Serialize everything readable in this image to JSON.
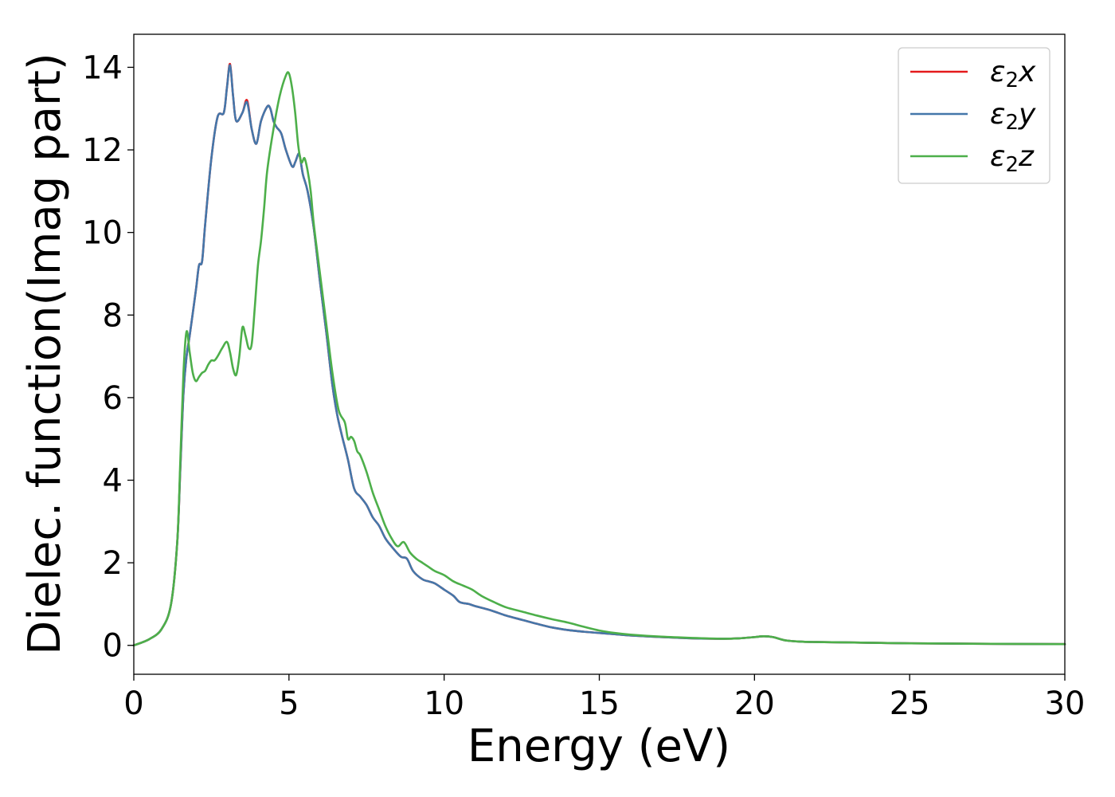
{
  "chart_data": {
    "type": "line",
    "xlabel": "Energy (eV)",
    "ylabel": "Dielec. function(Imag part)",
    "xlim": [
      0,
      30
    ],
    "ylim": [
      -0.7,
      14.8
    ],
    "xticks": [
      0,
      5,
      10,
      15,
      20,
      25,
      30
    ],
    "yticks": [
      0,
      2,
      4,
      6,
      8,
      10,
      12,
      14
    ],
    "grid": false,
    "legend_position": "top-right",
    "series": [
      {
        "name": "ε₂x",
        "legend": {
          "base": "ε",
          "sub": "2",
          "axis": "x"
        },
        "color": "#e41a1c",
        "x": [
          0,
          0.5,
          0.9,
          1.2,
          1.4,
          1.5,
          1.6,
          1.7,
          1.8,
          2.0,
          2.1,
          2.2,
          2.3,
          2.5,
          2.7,
          2.9,
          3.0,
          3.1,
          3.2,
          3.3,
          3.5,
          3.65,
          3.8,
          3.95,
          4.1,
          4.3,
          4.4,
          4.5,
          4.6,
          4.75,
          4.9,
          5.1,
          5.2,
          5.3,
          5.35,
          5.45,
          5.6,
          5.8,
          6.0,
          6.2,
          6.4,
          6.55,
          6.7,
          6.9,
          7.1,
          7.3,
          7.5,
          7.7,
          7.9,
          8.1,
          8.3,
          8.6,
          8.8,
          9.0,
          9.3,
          9.5,
          9.7,
          10.0,
          10.3,
          10.5,
          10.8,
          11.0,
          11.5,
          12.0,
          12.5,
          13.0,
          13.5,
          14.0,
          14.5,
          15.0,
          15.5,
          16.0,
          17.0,
          18.0,
          19.0,
          19.5,
          20.0,
          20.3,
          20.6,
          21.0,
          21.5,
          22.0,
          23.0,
          25.0,
          27.0,
          30.0
        ],
        "values": [
          0.0,
          0.15,
          0.4,
          1.0,
          2.5,
          4.3,
          6.1,
          7.0,
          7.5,
          8.6,
          9.2,
          9.3,
          10.2,
          11.8,
          12.8,
          12.9,
          13.5,
          14.08,
          13.3,
          12.7,
          12.9,
          13.2,
          12.5,
          12.15,
          12.7,
          13.05,
          13.0,
          12.7,
          12.55,
          12.4,
          12.0,
          11.6,
          11.7,
          11.9,
          11.85,
          11.4,
          11.0,
          10.1,
          8.8,
          7.6,
          6.3,
          5.6,
          5.1,
          4.5,
          3.8,
          3.6,
          3.4,
          3.1,
          2.9,
          2.6,
          2.4,
          2.15,
          2.1,
          1.8,
          1.6,
          1.55,
          1.5,
          1.35,
          1.2,
          1.05,
          1.0,
          0.95,
          0.85,
          0.72,
          0.62,
          0.52,
          0.43,
          0.37,
          0.33,
          0.3,
          0.27,
          0.24,
          0.2,
          0.17,
          0.16,
          0.17,
          0.2,
          0.22,
          0.2,
          0.12,
          0.09,
          0.08,
          0.07,
          0.05,
          0.04,
          0.03
        ]
      },
      {
        "name": "ε₂y",
        "legend": {
          "base": "ε",
          "sub": "2",
          "axis": "y"
        },
        "color": "#4477aa",
        "x": [
          0,
          0.5,
          0.9,
          1.2,
          1.4,
          1.5,
          1.6,
          1.7,
          1.8,
          2.0,
          2.1,
          2.2,
          2.3,
          2.5,
          2.7,
          2.9,
          3.0,
          3.1,
          3.2,
          3.3,
          3.5,
          3.65,
          3.8,
          3.95,
          4.1,
          4.3,
          4.4,
          4.5,
          4.6,
          4.75,
          4.9,
          5.1,
          5.2,
          5.3,
          5.35,
          5.45,
          5.6,
          5.8,
          6.0,
          6.2,
          6.4,
          6.55,
          6.7,
          6.9,
          7.1,
          7.3,
          7.5,
          7.7,
          7.9,
          8.1,
          8.3,
          8.6,
          8.8,
          9.0,
          9.3,
          9.5,
          9.7,
          10.0,
          10.3,
          10.5,
          10.8,
          11.0,
          11.5,
          12.0,
          12.5,
          13.0,
          13.5,
          14.0,
          14.5,
          15.0,
          15.5,
          16.0,
          17.0,
          18.0,
          19.0,
          19.5,
          20.0,
          20.3,
          20.6,
          21.0,
          21.5,
          22.0,
          23.0,
          25.0,
          27.0,
          30.0
        ],
        "values": [
          0.0,
          0.15,
          0.4,
          1.0,
          2.5,
          4.3,
          6.1,
          7.0,
          7.5,
          8.6,
          9.2,
          9.3,
          10.2,
          11.8,
          12.8,
          12.9,
          13.5,
          14.05,
          13.3,
          12.7,
          12.9,
          13.15,
          12.5,
          12.15,
          12.7,
          13.05,
          13.0,
          12.7,
          12.55,
          12.4,
          12.0,
          11.6,
          11.7,
          11.9,
          11.85,
          11.4,
          11.0,
          10.1,
          8.8,
          7.6,
          6.3,
          5.6,
          5.1,
          4.5,
          3.8,
          3.6,
          3.4,
          3.1,
          2.9,
          2.6,
          2.4,
          2.15,
          2.1,
          1.8,
          1.6,
          1.55,
          1.5,
          1.35,
          1.2,
          1.05,
          1.0,
          0.95,
          0.85,
          0.72,
          0.62,
          0.52,
          0.43,
          0.37,
          0.33,
          0.3,
          0.27,
          0.24,
          0.2,
          0.17,
          0.16,
          0.17,
          0.2,
          0.22,
          0.2,
          0.12,
          0.09,
          0.08,
          0.07,
          0.05,
          0.04,
          0.03
        ]
      },
      {
        "name": "ε₂z",
        "legend": {
          "base": "ε",
          "sub": "2",
          "axis": "z"
        },
        "color": "#4daf4a",
        "x": [
          0,
          0.5,
          0.9,
          1.2,
          1.4,
          1.5,
          1.6,
          1.7,
          1.8,
          1.9,
          2.0,
          2.1,
          2.2,
          2.3,
          2.4,
          2.5,
          2.6,
          2.7,
          2.85,
          3.0,
          3.1,
          3.2,
          3.3,
          3.4,
          3.5,
          3.6,
          3.7,
          3.8,
          3.9,
          4.0,
          4.1,
          4.2,
          4.3,
          4.5,
          4.7,
          4.9,
          5.0,
          5.1,
          5.2,
          5.3,
          5.4,
          5.5,
          5.6,
          5.7,
          5.8,
          6.0,
          6.2,
          6.4,
          6.6,
          6.8,
          6.9,
          7.0,
          7.1,
          7.2,
          7.3,
          7.5,
          7.7,
          7.9,
          8.1,
          8.3,
          8.5,
          8.7,
          8.9,
          9.1,
          9.3,
          9.5,
          9.7,
          10.0,
          10.3,
          10.6,
          10.9,
          11.2,
          11.6,
          12.0,
          12.5,
          13.0,
          13.5,
          14.0,
          14.5,
          15.0,
          15.5,
          16.0,
          17.0,
          18.0,
          19.0,
          19.5,
          20.0,
          20.3,
          20.6,
          21.0,
          21.5,
          22.0,
          23.0,
          25.0,
          27.0,
          30.0
        ],
        "values": [
          0.0,
          0.15,
          0.4,
          1.0,
          2.5,
          4.5,
          6.6,
          7.6,
          7.1,
          6.6,
          6.4,
          6.5,
          6.6,
          6.65,
          6.8,
          6.9,
          6.9,
          7.0,
          7.2,
          7.35,
          7.1,
          6.7,
          6.55,
          7.0,
          7.7,
          7.5,
          7.2,
          7.3,
          8.2,
          9.2,
          9.8,
          10.6,
          11.5,
          12.5,
          13.3,
          13.8,
          13.85,
          13.5,
          12.9,
          12.1,
          11.7,
          11.8,
          11.5,
          11.0,
          10.2,
          9.0,
          7.8,
          6.6,
          5.7,
          5.4,
          5.0,
          5.05,
          4.95,
          4.7,
          4.6,
          4.2,
          3.7,
          3.3,
          2.9,
          2.6,
          2.4,
          2.5,
          2.25,
          2.1,
          2.0,
          1.9,
          1.8,
          1.7,
          1.55,
          1.45,
          1.35,
          1.2,
          1.05,
          0.92,
          0.82,
          0.72,
          0.63,
          0.55,
          0.45,
          0.36,
          0.3,
          0.26,
          0.21,
          0.18,
          0.16,
          0.17,
          0.2,
          0.22,
          0.2,
          0.12,
          0.09,
          0.08,
          0.07,
          0.05,
          0.04,
          0.03
        ]
      }
    ]
  }
}
